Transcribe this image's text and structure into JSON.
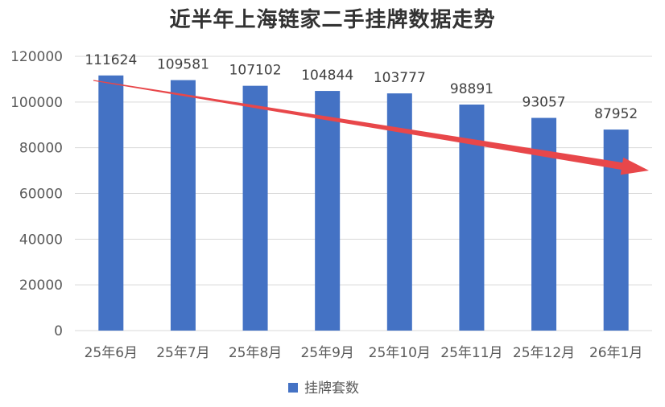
{
  "chart_data": {
    "type": "bar",
    "title": "近半年上海链家二手挂牌数据走势",
    "categories": [
      "25年6月",
      "25年7月",
      "25年8月",
      "25年9月",
      "25年10月",
      "25年11月",
      "25年12月",
      "26年1月"
    ],
    "series": [
      {
        "name": "挂牌套数",
        "values": [
          111624,
          109581,
          107102,
          104844,
          103777,
          98891,
          93057,
          87952
        ]
      }
    ],
    "ylim": [
      0,
      120000
    ],
    "yticks": [
      "0",
      "20000",
      "40000",
      "60000",
      "80000",
      "100000",
      "120000"
    ],
    "grid": true,
    "legend": "bottom",
    "colors": {
      "bar": "#4472C4",
      "trend_arrow": "#E8474A",
      "grid": "#D9D9D9"
    },
    "annotation": "downward trend arrow"
  }
}
